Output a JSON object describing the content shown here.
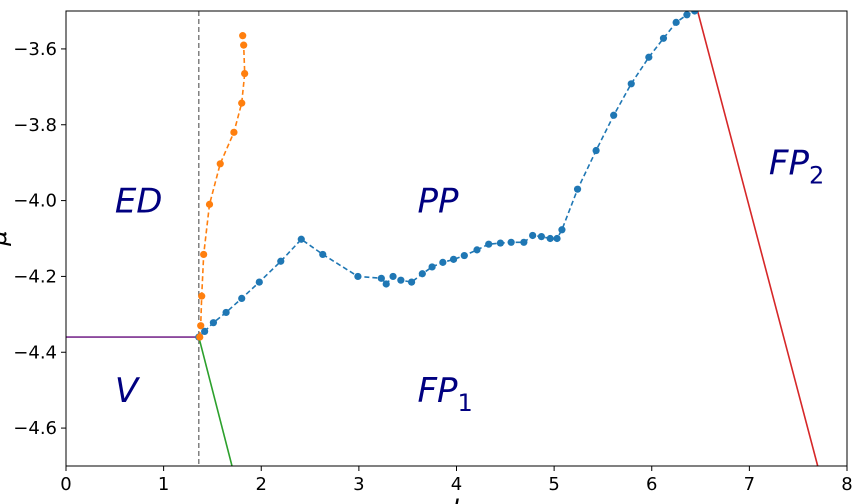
{
  "chart_data": {
    "type": "line",
    "title": "",
    "xlabel": "J",
    "ylabel": "μ",
    "xlim": [
      0,
      8
    ],
    "ylim": [
      -4.7,
      -3.5
    ],
    "x_ticks": [
      0,
      1,
      2,
      3,
      4,
      5,
      6,
      7,
      8
    ],
    "x_tick_labels": [
      "0",
      "1",
      "2",
      "3",
      "4",
      "5",
      "6",
      "7",
      "8"
    ],
    "y_ticks": [
      -4.6,
      -4.4,
      -4.2,
      -4.0,
      -3.8,
      -3.6
    ],
    "y_tick_labels": [
      "−4.6",
      "−4.4",
      "−4.2",
      "−4.0",
      "−3.8",
      "−3.6"
    ],
    "grid": false,
    "colors": {
      "blue": "#1f77b4",
      "orange": "#ff7f0e",
      "green": "#2ca02c",
      "red": "#d62728",
      "purple": "#7b2f8f",
      "vline": "#808080",
      "phase_text": "#000080"
    },
    "series": [
      {
        "style": "dashed-markers",
        "color": "#1f77b4",
        "x": [
          1.36,
          1.42,
          1.51,
          1.64,
          1.8,
          1.98,
          2.2,
          2.41,
          2.63,
          2.99,
          3.23,
          3.28,
          3.35,
          3.43,
          3.54,
          3.65,
          3.75,
          3.86,
          3.97,
          4.08,
          4.21,
          4.33,
          4.45,
          4.56,
          4.69,
          4.78,
          4.87,
          4.96,
          5.03,
          5.08,
          5.24,
          5.43,
          5.61,
          5.79,
          5.97,
          6.12,
          6.25,
          6.36,
          6.44
        ],
        "y": [
          -4.36,
          -4.345,
          -4.322,
          -4.295,
          -4.258,
          -4.215,
          -4.16,
          -4.102,
          -4.142,
          -4.2,
          -4.205,
          -4.22,
          -4.2,
          -4.21,
          -4.215,
          -4.193,
          -4.175,
          -4.163,
          -4.155,
          -4.145,
          -4.13,
          -4.115,
          -4.112,
          -4.11,
          -4.11,
          -4.092,
          -4.095,
          -4.1,
          -4.1,
          -4.077,
          -3.97,
          -3.868,
          -3.775,
          -3.692,
          -3.622,
          -3.572,
          -3.53,
          -3.51,
          -3.5
        ]
      },
      {
        "style": "dashed-markers",
        "color": "#ff7f0e",
        "x": [
          1.37,
          1.38,
          1.39,
          1.41,
          1.47,
          1.58,
          1.72,
          1.8,
          1.83,
          1.82,
          1.81
        ],
        "y": [
          -4.36,
          -4.33,
          -4.252,
          -4.142,
          -4.01,
          -3.903,
          -3.82,
          -3.743,
          -3.665,
          -3.59,
          -3.565
        ]
      },
      {
        "style": "solid",
        "color": "#2ca02c",
        "x": [
          1.36,
          1.7
        ],
        "y": [
          -4.36,
          -4.7
        ]
      },
      {
        "style": "solid",
        "color": "#d62728",
        "x": [
          6.47,
          7.7
        ],
        "y": [
          -3.5,
          -4.7
        ]
      },
      {
        "style": "solid",
        "color": "#7b2f8f",
        "x": [
          0,
          1.36
        ],
        "y": [
          -4.36,
          -4.36
        ]
      }
    ],
    "reference_line": {
      "x": 1.36,
      "style": "dashed",
      "color": "#808080"
    },
    "annotations": [
      {
        "main": "ED",
        "sub": "",
        "x": 0.5,
        "y": -4.0
      },
      {
        "main": "PP",
        "sub": "",
        "x": 3.6,
        "y": -4.0
      },
      {
        "main": "FP",
        "sub": "2",
        "x": 7.2,
        "y": -3.9
      },
      {
        "main": "V",
        "sub": "",
        "x": 0.5,
        "y": -4.5
      },
      {
        "main": "FP",
        "sub": "1",
        "x": 3.6,
        "y": -4.5
      }
    ]
  }
}
